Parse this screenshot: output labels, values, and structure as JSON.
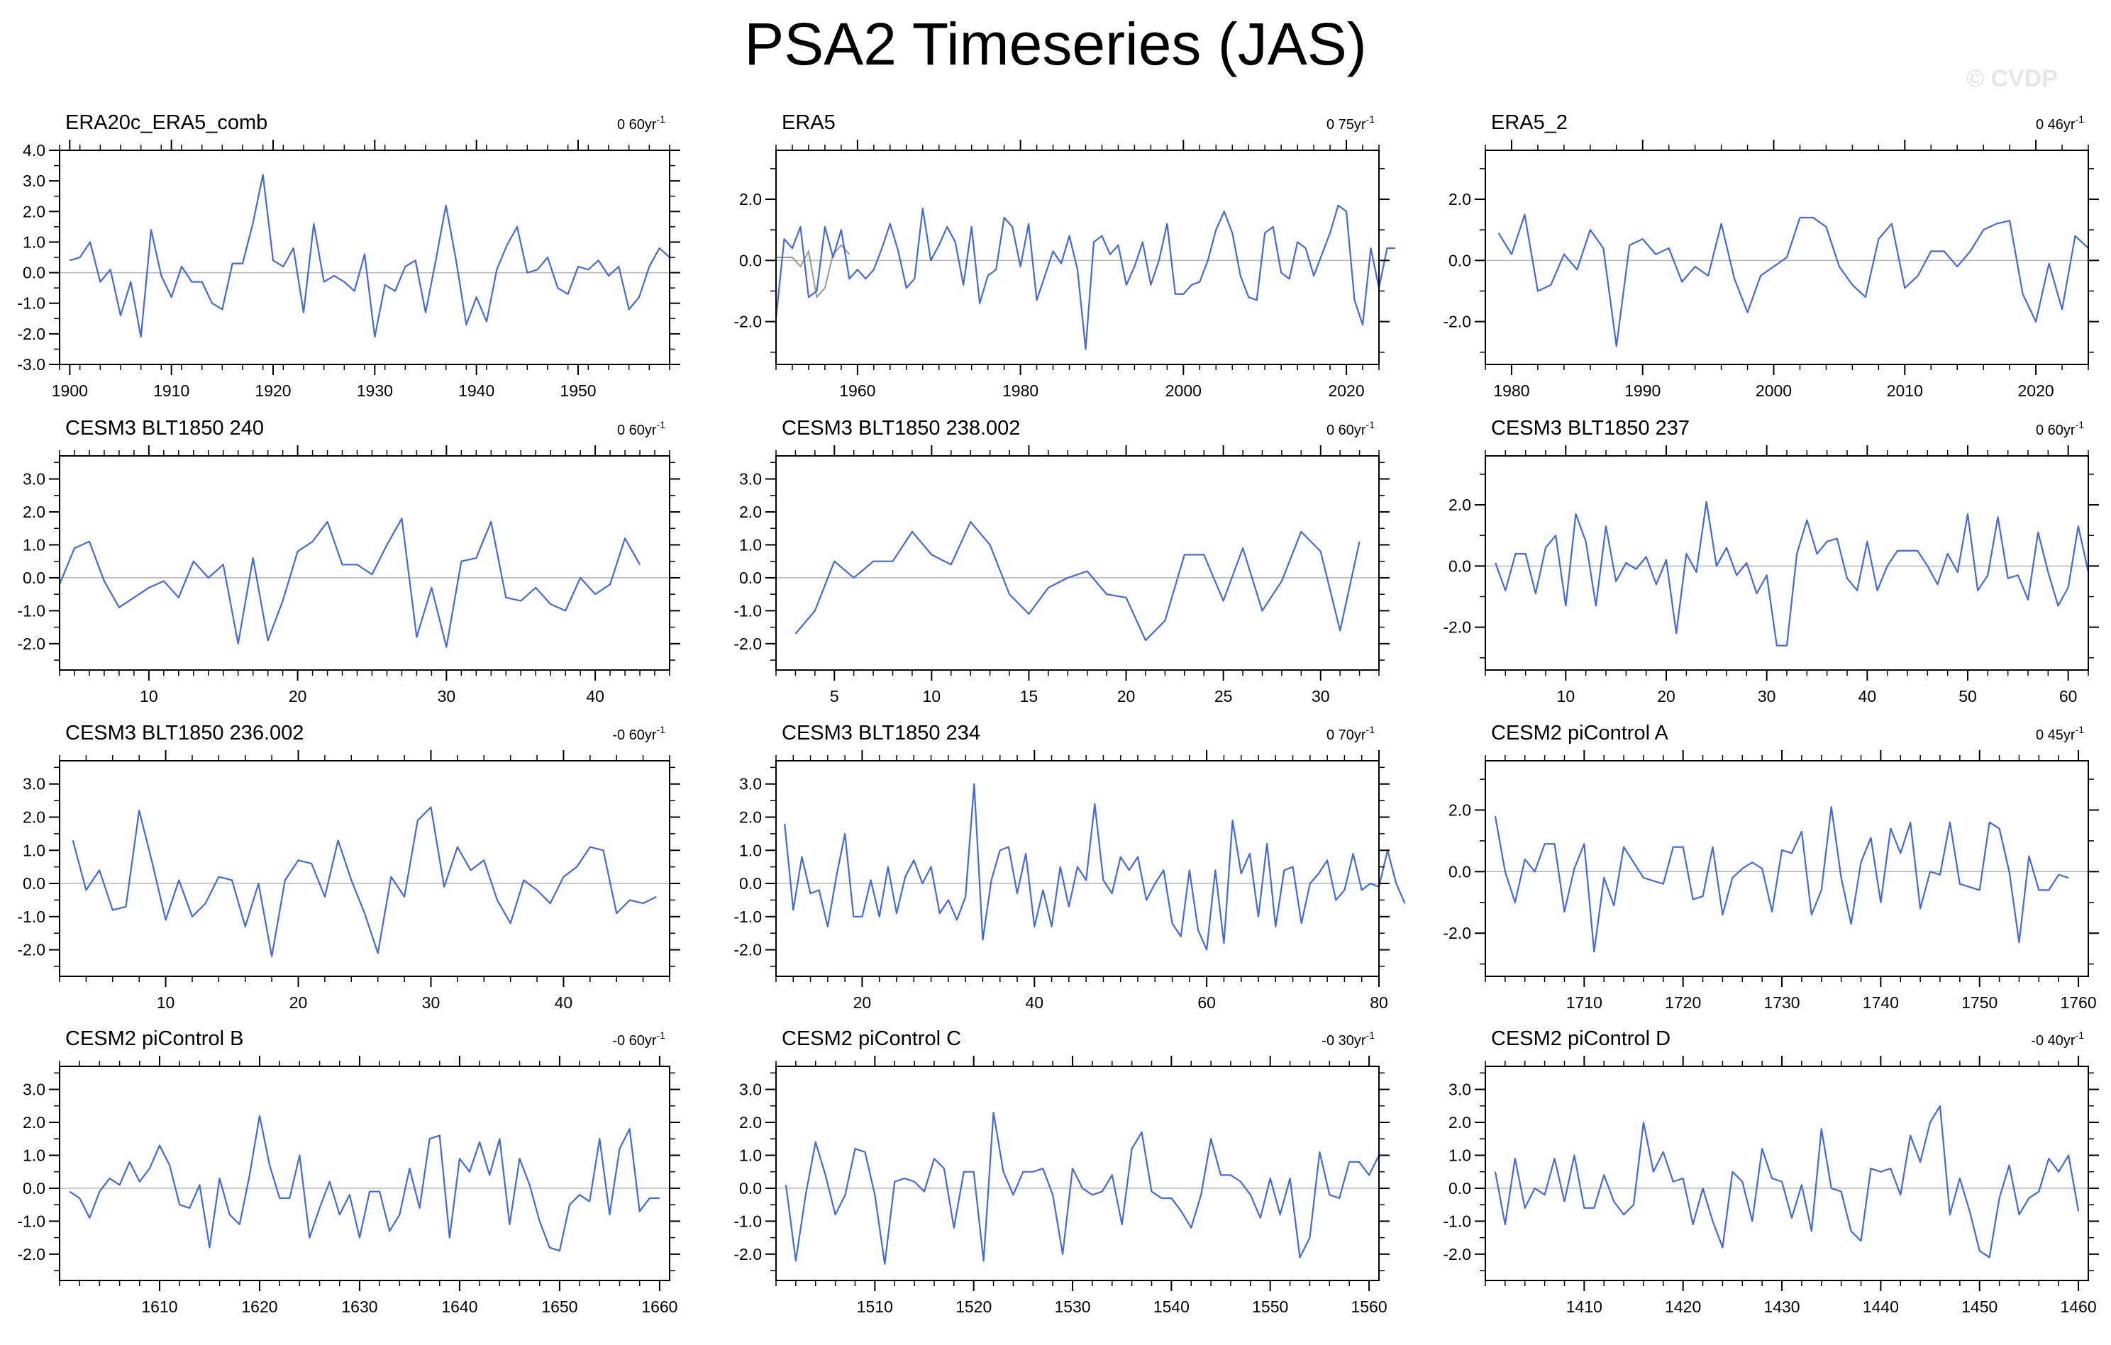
{
  "title": "PSA2 Timeseries (JAS)",
  "watermark": "© CVDP",
  "chart_data": [
    {
      "type": "line",
      "title": "ERA20c_ERA5_comb",
      "trend": "0 60yr",
      "trend_sup": "-1",
      "x_start": 1900,
      "x_step": 1,
      "xlim": [
        1899,
        1959
      ],
      "xticks": [
        1900,
        1910,
        1920,
        1930,
        1940,
        1950
      ],
      "ylim": [
        -3,
        4
      ],
      "yticks": [
        -3,
        -2,
        -1,
        0,
        1,
        2,
        3,
        4
      ],
      "ytick_labels": [
        "-3.0",
        "-2.0",
        "-1.0",
        "0.0",
        "1.0",
        "2.0",
        "3.0",
        "4.0"
      ],
      "values": [
        0.4,
        0.5,
        1.0,
        -0.3,
        0.1,
        -1.4,
        -0.3,
        -2.1,
        1.4,
        -0.1,
        -0.8,
        0.2,
        -0.3,
        -0.3,
        -1.0,
        -1.2,
        0.3,
        0.3,
        1.6,
        3.2,
        0.4,
        0.2,
        0.8,
        -1.3,
        1.6,
        -0.3,
        -0.1,
        -0.3,
        -0.6,
        0.6,
        -2.1,
        -0.4,
        -0.6,
        0.2,
        0.4,
        -1.3,
        0.4,
        2.2,
        0.4,
        -1.7,
        -0.8,
        -1.6,
        0.1,
        0.9,
        1.5,
        0.0,
        0.1,
        0.5,
        -0.5,
        -0.7,
        0.2,
        0.1,
        0.4,
        -0.1,
        0.2,
        -1.2,
        -0.8,
        0.2,
        0.8,
        0.5
      ]
    },
    {
      "type": "line",
      "title": "ERA5",
      "trend": "0 75yr",
      "trend_sup": "-1",
      "x_start": 1950,
      "x_step": 1,
      "xlim": [
        1950,
        2024
      ],
      "xticks": [
        1960,
        1980,
        2000,
        2020
      ],
      "ylim": [
        -3.4,
        3.6
      ],
      "yticks": [
        -2,
        0,
        2
      ],
      "ytick_labels": [
        "-2.0",
        "0.0",
        "2.0"
      ],
      "values": [
        -1.9,
        0.7,
        0.4,
        1.1,
        -1.2,
        -1.0,
        1.1,
        0.1,
        1.0,
        -0.6,
        -0.3,
        -0.6,
        -0.3,
        0.4,
        1.2,
        0.3,
        -0.9,
        -0.6,
        1.7,
        0.0,
        0.5,
        1.1,
        0.6,
        -0.8,
        1.1,
        -1.4,
        -0.5,
        -0.3,
        1.4,
        1.1,
        -0.2,
        1.2,
        -1.3,
        -0.5,
        0.3,
        -0.1,
        0.8,
        -0.3,
        -2.9,
        0.6,
        0.8,
        0.2,
        0.5,
        -0.8,
        -0.2,
        0.6,
        -0.8,
        0.0,
        1.2,
        -1.1,
        -1.1,
        -0.8,
        -0.7,
        0.0,
        1.0,
        1.6,
        0.9,
        -0.5,
        -1.2,
        -1.3,
        0.9,
        1.1,
        -0.4,
        -0.6,
        0.6,
        0.4,
        -0.5,
        0.2,
        0.9,
        1.8,
        1.6,
        -1.3,
        -2.1,
        0.4,
        -0.9,
        0.4,
        0.4
      ],
      "overlay": {
        "name": "ERA5 (grey)",
        "color": "#999999",
        "x_start": 1950,
        "values": [
          0.1,
          0.1,
          0.1,
          -0.2,
          0.3,
          -1.2,
          -0.9,
          0.2,
          0.5,
          0.2
        ]
      }
    },
    {
      "type": "line",
      "title": "ERA5_2",
      "trend": "0 46yr",
      "trend_sup": "-1",
      "x_start": 1979,
      "x_step": 1,
      "xlim": [
        1978,
        2024
      ],
      "xticks": [
        1980,
        1990,
        2000,
        2010,
        2020
      ],
      "ylim": [
        -3.4,
        3.6
      ],
      "yticks": [
        -2,
        0,
        2
      ],
      "ytick_labels": [
        "-2.0",
        "0.0",
        "2.0"
      ],
      "values": [
        0.9,
        0.2,
        1.5,
        -1.0,
        -0.8,
        0.2,
        -0.3,
        1.0,
        0.4,
        -2.8,
        0.5,
        0.7,
        0.2,
        0.4,
        -0.7,
        -0.2,
        -0.5,
        1.2,
        -0.6,
        -1.7,
        -0.5,
        -0.2,
        0.1,
        1.4,
        1.4,
        1.1,
        -0.2,
        -0.8,
        -1.2,
        0.7,
        1.2,
        -0.9,
        -0.5,
        0.3,
        0.3,
        -0.2,
        0.3,
        1.0,
        1.2,
        1.3,
        -1.1,
        -2.0,
        -0.1,
        -1.6,
        0.8,
        0.4
      ]
    },
    {
      "type": "line",
      "title": "CESM3 BLT1850 240",
      "trend": "0 60yr",
      "trend_sup": "-1",
      "x_start": 4,
      "x_step": 1,
      "xlim": [
        4,
        45
      ],
      "xticks": [
        10,
        20,
        30,
        40
      ],
      "ylim": [
        -2.8,
        3.7
      ],
      "yticks": [
        -2,
        -1,
        0,
        1,
        2,
        3
      ],
      "ytick_labels": [
        "-2.0",
        "-1.0",
        "0.0",
        "1.0",
        "2.0",
        "3.0"
      ],
      "values": [
        -0.2,
        0.9,
        1.1,
        -0.1,
        -0.9,
        -0.6,
        -0.3,
        -0.1,
        -0.6,
        0.5,
        0.0,
        0.4,
        -2.0,
        0.6,
        -1.9,
        -0.7,
        0.8,
        1.1,
        1.7,
        0.4,
        0.4,
        0.1,
        1.0,
        1.8,
        -1.8,
        -0.3,
        -2.1,
        0.5,
        0.6,
        1.7,
        -0.6,
        -0.7,
        -0.3,
        -0.8,
        -1.0,
        0.0,
        -0.5,
        -0.2,
        1.2,
        0.4
      ]
    },
    {
      "type": "line",
      "title": "CESM3 BLT1850 238.002",
      "trend": "0 60yr",
      "trend_sup": "-1",
      "x_start": 3,
      "x_step": 1,
      "xlim": [
        2,
        33
      ],
      "xticks": [
        5,
        10,
        15,
        20,
        25,
        30
      ],
      "ylim": [
        -2.8,
        3.7
      ],
      "yticks": [
        -2,
        -1,
        0,
        1,
        2,
        3
      ],
      "ytick_labels": [
        "-2.0",
        "-1.0",
        "0.0",
        "1.0",
        "2.0",
        "3.0"
      ],
      "values": [
        -1.7,
        -1.0,
        0.5,
        0.0,
        0.5,
        0.5,
        1.4,
        0.7,
        0.4,
        1.7,
        1.0,
        -0.5,
        -1.1,
        -0.3,
        0.0,
        0.2,
        -0.5,
        -0.6,
        -1.9,
        -1.3,
        0.7,
        0.7,
        -0.7,
        0.9,
        -1.0,
        -0.1,
        1.4,
        0.8,
        -1.6,
        1.1
      ]
    },
    {
      "type": "line",
      "title": "CESM3 BLT1850 237",
      "trend": "0 60yr",
      "trend_sup": "-1",
      "x_start": 3,
      "x_step": 1,
      "xlim": [
        2,
        62
      ],
      "xticks": [
        10,
        20,
        30,
        40,
        50,
        60
      ],
      "ylim": [
        -3.4,
        3.6
      ],
      "yticks": [
        -2,
        0,
        2
      ],
      "ytick_labels": [
        "-2.0",
        "0.0",
        "2.0"
      ],
      "values": [
        0.1,
        -0.8,
        0.4,
        0.4,
        -0.9,
        0.6,
        1.0,
        -1.3,
        1.7,
        0.8,
        -1.3,
        1.3,
        -0.5,
        0.1,
        -0.1,
        0.3,
        -0.6,
        0.2,
        -2.2,
        0.4,
        -0.2,
        2.1,
        0.0,
        0.6,
        -0.3,
        0.1,
        -0.9,
        -0.3,
        -2.6,
        -2.6,
        0.4,
        1.5,
        0.4,
        0.8,
        0.9,
        -0.4,
        -0.8,
        0.8,
        -0.8,
        0.0,
        0.5,
        0.5,
        0.5,
        0.0,
        -0.6,
        0.4,
        -0.2,
        1.7,
        -0.8,
        -0.3,
        1.6,
        -0.4,
        -0.3,
        -1.1,
        1.1,
        -0.2,
        -1.3,
        -0.7,
        1.3,
        -0.2
      ]
    },
    {
      "type": "line",
      "title": "CESM3 BLT1850 236.002",
      "trend": "-0 60yr",
      "trend_sup": "-1",
      "x_start": 3,
      "x_step": 1,
      "xlim": [
        2,
        48
      ],
      "xticks": [
        10,
        20,
        30,
        40
      ],
      "ylim": [
        -2.8,
        3.7
      ],
      "yticks": [
        -2,
        -1,
        0,
        1,
        2,
        3
      ],
      "ytick_labels": [
        "-2.0",
        "-1.0",
        "0.0",
        "1.0",
        "2.0",
        "3.0"
      ],
      "values": [
        1.3,
        -0.2,
        0.4,
        -0.8,
        -0.7,
        2.2,
        0.6,
        -1.1,
        0.1,
        -1.0,
        -0.6,
        0.2,
        0.1,
        -1.3,
        0.0,
        -2.2,
        0.1,
        0.7,
        0.6,
        -0.4,
        1.3,
        0.1,
        -0.9,
        -2.1,
        0.2,
        -0.4,
        1.9,
        2.3,
        -0.1,
        1.1,
        0.4,
        0.7,
        -0.5,
        -1.2,
        0.1,
        -0.2,
        -0.6,
        0.2,
        0.5,
        1.1,
        1.0,
        -0.9,
        -0.5,
        -0.6,
        -0.4
      ]
    },
    {
      "type": "line",
      "title": "CESM3 BLT1850 234",
      "trend": "0 70yr",
      "trend_sup": "-1",
      "x_start": 11,
      "x_step": 1,
      "xlim": [
        10,
        80
      ],
      "xticks": [
        20,
        40,
        60,
        80
      ],
      "ylim": [
        -2.8,
        3.7
      ],
      "yticks": [
        -2,
        -1,
        0,
        1,
        2,
        3
      ],
      "ytick_labels": [
        "-2.0",
        "-1.0",
        "0.0",
        "1.0",
        "2.0",
        "3.0"
      ],
      "values": [
        1.8,
        -0.8,
        0.8,
        -0.3,
        -0.2,
        -1.3,
        0.2,
        1.5,
        -1.0,
        -1.0,
        0.1,
        -1.0,
        0.5,
        -0.9,
        0.2,
        0.7,
        0.0,
        0.5,
        -0.9,
        -0.5,
        -1.1,
        -0.4,
        3.0,
        -1.7,
        0.1,
        1.0,
        1.1,
        -0.3,
        0.9,
        -1.3,
        -0.2,
        -1.3,
        0.5,
        -0.7,
        0.5,
        0.1,
        2.4,
        0.1,
        -0.3,
        0.8,
        0.4,
        0.8,
        -0.5,
        0.0,
        0.4,
        -1.2,
        -1.6,
        0.4,
        -1.4,
        -2.0,
        0.4,
        -1.8,
        1.9,
        0.3,
        0.9,
        -1.0,
        1.2,
        -1.3,
        0.4,
        0.5,
        -1.2,
        0.0,
        0.3,
        0.7,
        -0.5,
        -0.2,
        0.9,
        -0.2,
        0.0,
        -0.1,
        1.0,
        0.0,
        -0.6
      ]
    },
    {
      "type": "line",
      "title": "CESM2 piControl A",
      "trend": "0 45yr",
      "trend_sup": "-1",
      "x_start": 1701,
      "x_step": 1,
      "xlim": [
        1700,
        1761
      ],
      "xticks": [
        1710,
        1720,
        1730,
        1740,
        1750,
        1760
      ],
      "ylim": [
        -3.4,
        3.6
      ],
      "yticks": [
        -2,
        0,
        2
      ],
      "ytick_labels": [
        "-2.0",
        "0.0",
        "2.0"
      ],
      "values": [
        1.8,
        0.0,
        -1.0,
        0.4,
        0.0,
        0.9,
        0.9,
        -1.3,
        0.1,
        0.9,
        -2.6,
        -0.2,
        -1.1,
        0.8,
        0.3,
        -0.2,
        -0.3,
        -0.4,
        0.8,
        0.8,
        -0.9,
        -0.8,
        0.8,
        -1.4,
        -0.2,
        0.1,
        0.3,
        0.1,
        -1.3,
        0.7,
        0.6,
        1.3,
        -1.4,
        -0.6,
        2.1,
        -0.2,
        -1.7,
        0.3,
        1.1,
        -1.0,
        1.4,
        0.6,
        1.6,
        -1.2,
        0.0,
        -0.1,
        1.6,
        -0.4,
        -0.5,
        -0.6,
        1.6,
        1.4,
        0.0,
        -2.3,
        0.5,
        -0.6,
        -0.6,
        -0.1,
        -0.2
      ]
    },
    {
      "type": "line",
      "title": "CESM2 piControl B",
      "trend": "-0 60yr",
      "trend_sup": "-1",
      "x_start": 1601,
      "x_step": 1,
      "xlim": [
        1600,
        1661
      ],
      "xticks": [
        1610,
        1620,
        1630,
        1640,
        1650,
        1660
      ],
      "ylim": [
        -2.8,
        3.7
      ],
      "yticks": [
        -2,
        -1,
        0,
        1,
        2,
        3
      ],
      "ytick_labels": [
        "-2.0",
        "-1.0",
        "0.0",
        "1.0",
        "2.0",
        "3.0"
      ],
      "values": [
        -0.1,
        -0.3,
        -0.9,
        -0.1,
        0.3,
        0.1,
        0.8,
        0.2,
        0.6,
        1.3,
        0.7,
        -0.5,
        -0.6,
        0.1,
        -1.8,
        0.3,
        -0.8,
        -1.1,
        0.4,
        2.2,
        0.7,
        -0.3,
        -0.3,
        1.0,
        -1.5,
        -0.6,
        0.2,
        -0.8,
        -0.2,
        -1.5,
        -0.1,
        -0.1,
        -1.3,
        -0.8,
        0.6,
        -0.6,
        1.5,
        1.6,
        -1.5,
        0.9,
        0.5,
        1.4,
        0.4,
        1.5,
        -1.1,
        0.9,
        0.1,
        -1.0,
        -1.8,
        -1.9,
        -0.5,
        -0.2,
        -0.4,
        1.5,
        -0.8,
        1.2,
        1.8,
        -0.7,
        -0.3,
        -0.3
      ]
    },
    {
      "type": "line",
      "title": "CESM2 piControl C",
      "trend": "-0 30yr",
      "trend_sup": "-1",
      "x_start": 1501,
      "x_step": 1,
      "xlim": [
        1500,
        1561
      ],
      "xticks": [
        1510,
        1520,
        1530,
        1540,
        1550,
        1560
      ],
      "ylim": [
        -2.8,
        3.7
      ],
      "yticks": [
        -2,
        -1,
        0,
        1,
        2,
        3
      ],
      "ytick_labels": [
        "-2.0",
        "-1.0",
        "0.0",
        "1.0",
        "2.0",
        "3.0"
      ],
      "values": [
        0.1,
        -2.2,
        -0.2,
        1.4,
        0.4,
        -0.8,
        -0.2,
        1.2,
        1.1,
        -0.2,
        -2.3,
        0.2,
        0.3,
        0.2,
        -0.1,
        0.9,
        0.6,
        -1.2,
        0.5,
        0.5,
        -2.2,
        2.3,
        0.5,
        -0.2,
        0.5,
        0.5,
        0.6,
        -0.2,
        -2.0,
        0.6,
        0.0,
        -0.2,
        -0.1,
        0.4,
        -1.1,
        1.2,
        1.7,
        -0.1,
        -0.3,
        -0.3,
        -0.7,
        -1.2,
        -0.2,
        1.5,
        0.4,
        0.4,
        0.2,
        -0.2,
        -0.9,
        0.3,
        -0.8,
        0.3,
        -2.1,
        -1.5,
        1.1,
        -0.2,
        -0.3,
        0.8,
        0.8,
        0.4,
        1.0
      ]
    },
    {
      "type": "line",
      "title": "CESM2 piControl D",
      "trend": "-0 40yr",
      "trend_sup": "-1",
      "x_start": 1401,
      "x_step": 1,
      "xlim": [
        1400,
        1461
      ],
      "xticks": [
        1410,
        1420,
        1430,
        1440,
        1450,
        1460
      ],
      "ylim": [
        -2.8,
        3.7
      ],
      "yticks": [
        -2,
        -1,
        0,
        1,
        2,
        3
      ],
      "ytick_labels": [
        "-2.0",
        "-1.0",
        "0.0",
        "1.0",
        "2.0",
        "3.0"
      ],
      "values": [
        0.5,
        -1.1,
        0.9,
        -0.6,
        0.0,
        -0.2,
        0.9,
        -0.4,
        1.0,
        -0.6,
        -0.6,
        0.4,
        -0.4,
        -0.8,
        -0.5,
        2.0,
        0.5,
        1.1,
        0.2,
        0.3,
        -1.1,
        0.0,
        -1.0,
        -1.8,
        0.5,
        0.2,
        -1.0,
        1.2,
        0.3,
        0.2,
        -0.9,
        0.1,
        -1.3,
        1.8,
        0.0,
        -0.1,
        -1.3,
        -1.6,
        0.6,
        0.5,
        0.6,
        -0.2,
        1.6,
        0.8,
        2.0,
        2.5,
        -0.8,
        0.3,
        -0.7,
        -1.9,
        -2.1,
        -0.3,
        0.7,
        -0.8,
        -0.3,
        -0.1,
        0.9,
        0.5,
        1.0,
        -0.7
      ]
    }
  ]
}
